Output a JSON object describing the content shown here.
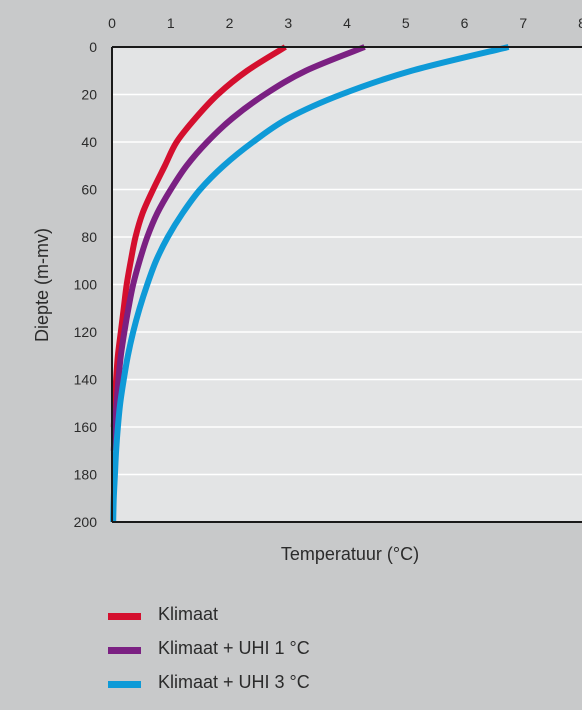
{
  "chart_data": {
    "type": "line",
    "xlabel": "Temperatuur (°C)",
    "ylabel": "Diepte (m-mv)",
    "xlim": [
      0,
      8
    ],
    "ylim": [
      200,
      0
    ],
    "x_axis_position": "top",
    "y_axis_inverted": true,
    "x_ticks": [
      "0",
      "1",
      "2",
      "3",
      "4",
      "5",
      "6",
      "7",
      "8"
    ],
    "y_ticks": [
      "0",
      "20",
      "40",
      "60",
      "80",
      "100",
      "120",
      "140",
      "160",
      "180",
      "200"
    ],
    "grid": "horizontal",
    "legend_position": "bottom",
    "series": [
      {
        "name": "Klimaat",
        "color": "#d40f2e",
        "points": [
          [
            2.95,
            0
          ],
          [
            2.3,
            10
          ],
          [
            1.8,
            20
          ],
          [
            1.42,
            30
          ],
          [
            1.1,
            40
          ],
          [
            0.9,
            50
          ],
          [
            0.7,
            60
          ],
          [
            0.52,
            70
          ],
          [
            0.4,
            80
          ],
          [
            0.32,
            90
          ],
          [
            0.25,
            100
          ],
          [
            0.2,
            110
          ],
          [
            0.15,
            120
          ],
          [
            0.1,
            130
          ],
          [
            0.07,
            140
          ],
          [
            0.05,
            150
          ],
          [
            0.03,
            160
          ]
        ]
      },
      {
        "name": "Klimaat + UHI 1 °C",
        "color": "#7b2082",
        "points": [
          [
            4.3,
            0
          ],
          [
            3.3,
            10
          ],
          [
            2.6,
            20
          ],
          [
            2.05,
            30
          ],
          [
            1.62,
            40
          ],
          [
            1.27,
            50
          ],
          [
            1.0,
            60
          ],
          [
            0.77,
            70
          ],
          [
            0.6,
            80
          ],
          [
            0.47,
            90
          ],
          [
            0.36,
            100
          ],
          [
            0.28,
            110
          ],
          [
            0.21,
            120
          ],
          [
            0.15,
            130
          ],
          [
            0.11,
            140
          ],
          [
            0.08,
            150
          ],
          [
            0.05,
            160
          ],
          [
            0.03,
            170
          ]
        ]
      },
      {
        "name": "Klimaat + UHI 3 °C",
        "color": "#0e9ad7",
        "points": [
          [
            6.75,
            0
          ],
          [
            5.1,
            10
          ],
          [
            3.9,
            20
          ],
          [
            3.0,
            30
          ],
          [
            2.4,
            40
          ],
          [
            1.9,
            50
          ],
          [
            1.5,
            60
          ],
          [
            1.2,
            70
          ],
          [
            0.95,
            80
          ],
          [
            0.75,
            90
          ],
          [
            0.6,
            100
          ],
          [
            0.47,
            110
          ],
          [
            0.36,
            120
          ],
          [
            0.27,
            130
          ],
          [
            0.2,
            140
          ],
          [
            0.14,
            150
          ],
          [
            0.1,
            160
          ],
          [
            0.07,
            170
          ],
          [
            0.05,
            180
          ],
          [
            0.03,
            190
          ],
          [
            0.02,
            200
          ]
        ]
      }
    ]
  }
}
